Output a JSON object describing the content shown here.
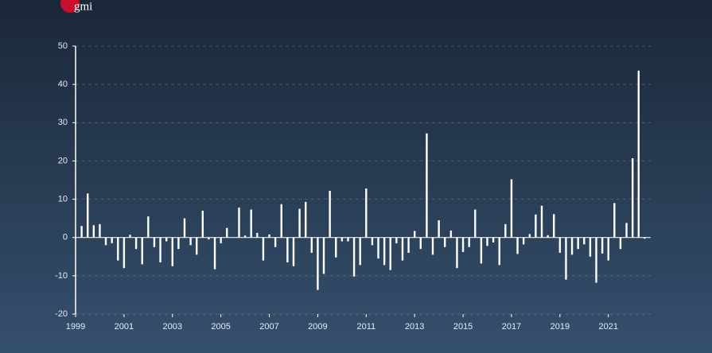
{
  "header": {
    "logo": "gmi"
  },
  "chart_data": {
    "type": "bar",
    "color": "#ffffff",
    "grid": true,
    "x": [
      1999.25,
      1999.5,
      1999.75,
      2000,
      2000.25,
      2000.5,
      2000.75,
      2001,
      2001.25,
      2001.5,
      2001.75,
      2002,
      2002.25,
      2002.5,
      2002.75,
      2003,
      2003.25,
      2003.5,
      2003.75,
      2004,
      2004.25,
      2004.5,
      2004.75,
      2005,
      2005.25,
      2005.5,
      2005.75,
      2006,
      2006.25,
      2006.5,
      2006.75,
      2007,
      2007.25,
      2007.5,
      2007.75,
      2008,
      2008.25,
      2008.5,
      2008.75,
      2009,
      2009.25,
      2009.5,
      2009.75,
      2010,
      2010.25,
      2010.5,
      2010.75,
      2011,
      2011.25,
      2011.5,
      2011.75,
      2012,
      2012.25,
      2012.5,
      2012.75,
      2013,
      2013.25,
      2013.5,
      2013.75,
      2014,
      2014.25,
      2014.5,
      2014.75,
      2015,
      2015.25,
      2015.5,
      2015.75,
      2016,
      2016.25,
      2016.5,
      2016.75,
      2017,
      2017.25,
      2017.5,
      2017.75,
      2018,
      2018.25,
      2018.5,
      2018.75,
      2019,
      2019.25,
      2019.5,
      2019.75,
      2020,
      2020.25,
      2020.5,
      2020.75,
      2021,
      2021.25,
      2021.5,
      2021.75,
      2022,
      2022.25,
      2022.5
    ],
    "values": [
      3,
      11.5,
      3.2,
      3.5,
      -2,
      -1.5,
      -6,
      -8,
      0.7,
      -3,
      -7,
      5.5,
      -2.5,
      -6.5,
      -1,
      -7.5,
      -3,
      5,
      -2,
      -4.5,
      7,
      -0.5,
      -8.3,
      -1.5,
      2.5,
      0,
      7.8,
      0.5,
      7.3,
      1.2,
      -6,
      0.8,
      -2.5,
      8.7,
      -6.5,
      -7.5,
      7.5,
      9.3,
      -4,
      -13.7,
      -9.5,
      12.2,
      -5.2,
      -1,
      -1,
      -10.2,
      -7.2,
      12.8,
      -2,
      -5.5,
      -7.2,
      -8.5,
      -1.5,
      -6,
      -4,
      1.7,
      -3,
      27.2,
      -4.5,
      4.5,
      -2.5,
      1.8,
      -8,
      -3.8,
      -2.5,
      7.3,
      -6.8,
      -2.2,
      -1.3,
      -7.2,
      3.5,
      15.2,
      -4.3,
      -1.8,
      0.9,
      6,
      8.3,
      0.6,
      6.1,
      -4,
      -11,
      -4.5,
      -3,
      -1.8,
      -5,
      -11.8,
      -4.2,
      -6,
      9,
      -3,
      3.8,
      20.7,
      43.6,
      -0.3
    ],
    "xlim": [
      1999,
      2022.75
    ],
    "xticks": [
      1999,
      2001,
      2003,
      2005,
      2007,
      2009,
      2011,
      2013,
      2015,
      2017,
      2019,
      2021
    ],
    "ylim": [
      -20,
      50
    ],
    "yticks": [
      -20,
      -10,
      0,
      10,
      20,
      30,
      40,
      50
    ]
  }
}
